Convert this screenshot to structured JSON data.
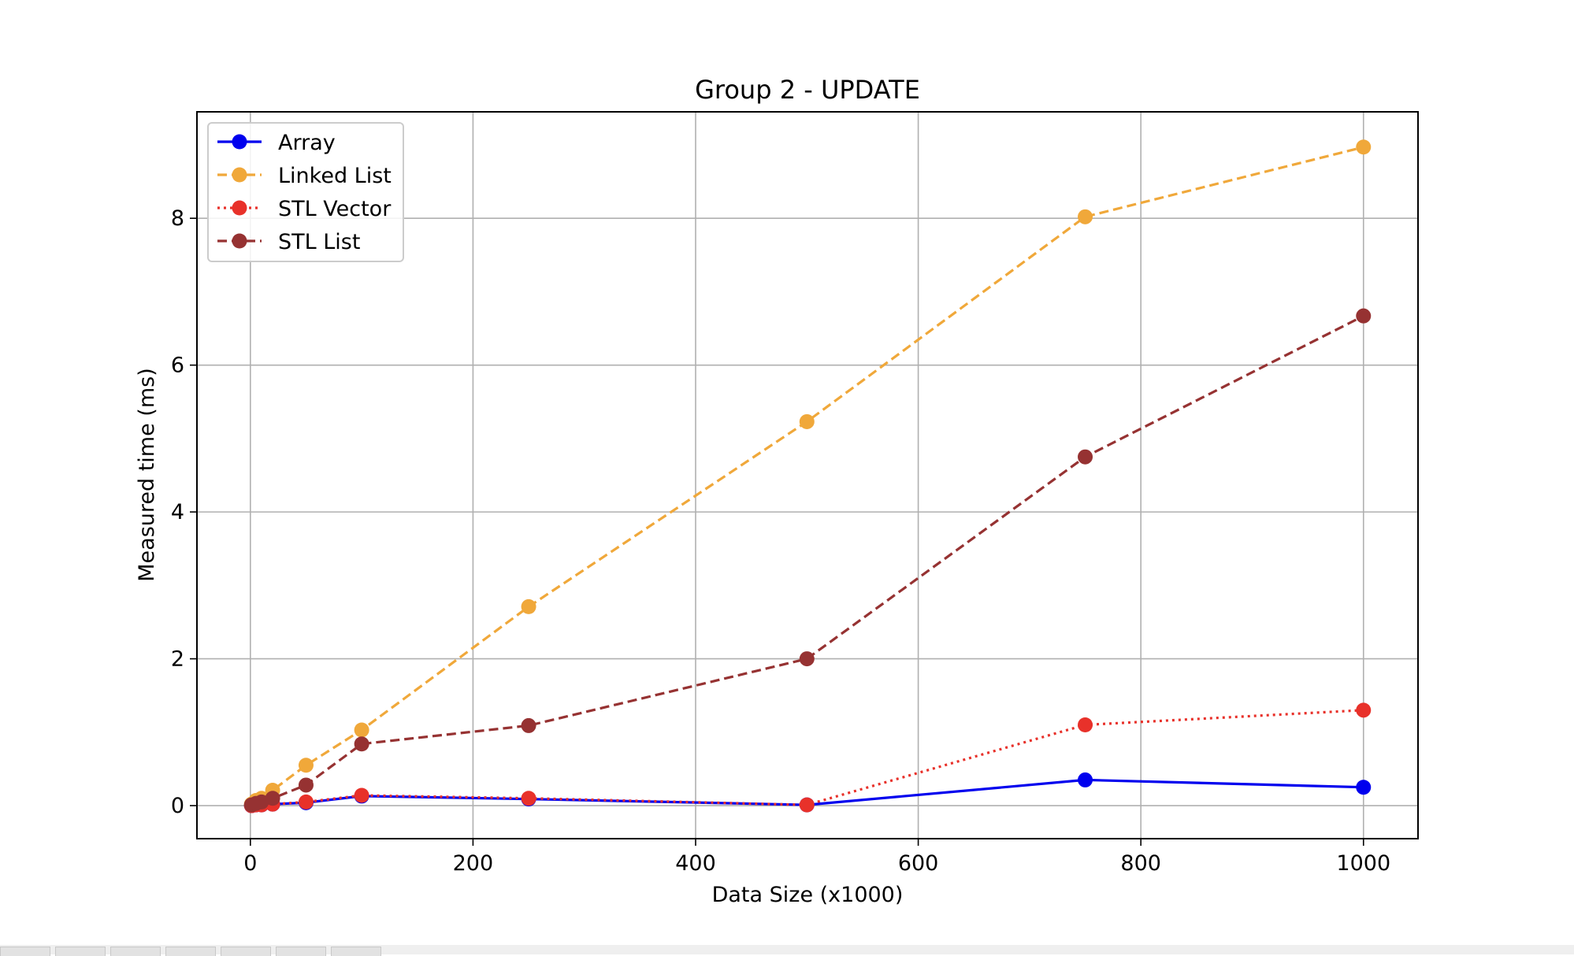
{
  "chart_data": {
    "type": "line",
    "title": "Group 2 - UPDATE",
    "xlabel": "Data Size (x1000)",
    "ylabel": "Measured time (ms)",
    "x": [
      1,
      5,
      10,
      20,
      50,
      100,
      250,
      500,
      750,
      1000
    ],
    "xlim": [
      -48,
      1049
    ],
    "ylim": [
      -0.45,
      9.45
    ],
    "xticks": [
      0,
      200,
      400,
      600,
      800,
      1000
    ],
    "yticks": [
      0,
      2,
      4,
      6,
      8
    ],
    "grid": true,
    "legend_position": "upper-left",
    "series": [
      {
        "name": "Array",
        "color": "#0000ee",
        "dash": "solid",
        "values": [
          0.0,
          0.01,
          0.01,
          0.02,
          0.04,
          0.13,
          0.09,
          0.01,
          0.35,
          0.25
        ]
      },
      {
        "name": "Linked List",
        "color": "#f0a83a",
        "dash": "dashed",
        "values": [
          0.02,
          0.07,
          0.1,
          0.21,
          0.55,
          1.03,
          2.71,
          5.23,
          8.02,
          8.97
        ]
      },
      {
        "name": "STL Vector",
        "color": "#e8312a",
        "dash": "dotted",
        "values": [
          0.0,
          0.01,
          0.01,
          0.02,
          0.05,
          0.14,
          0.1,
          0.01,
          1.1,
          1.3
        ]
      },
      {
        "name": "STL List",
        "color": "#963232",
        "dash": "dashed",
        "values": [
          0.01,
          0.03,
          0.05,
          0.1,
          0.28,
          0.84,
          1.09,
          2.0,
          4.75,
          6.67
        ]
      }
    ]
  }
}
